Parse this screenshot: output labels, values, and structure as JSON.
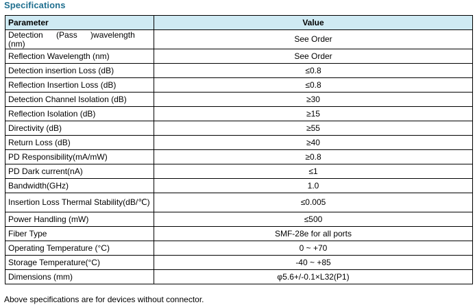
{
  "section_title": "Specifications",
  "table": {
    "headers": {
      "parameter": "Parameter",
      "value": "Value"
    },
    "rows": [
      {
        "parameter": "Detection (Pass )wavelength (nm)",
        "value": "See Order"
      },
      {
        "parameter": "Reflection Wavelength (nm)",
        "value": "See Order"
      },
      {
        "parameter": "Detection insertion Loss (dB)",
        "value": "≤0.8"
      },
      {
        "parameter": "Reflection Insertion Loss (dB)",
        "value": "≤0.8"
      },
      {
        "parameter": "Detection Channel Isolation (dB)",
        "value": "≥30"
      },
      {
        "parameter": "Reflection Isolation (dB)",
        "value": "≥15"
      },
      {
        "parameter": "Directivity (dB)",
        "value": "≥55"
      },
      {
        "parameter": "Return Loss (dB)",
        "value": "≥40"
      },
      {
        "parameter": "PD Responsibility(mA/mW)",
        "value": "≥0.8"
      },
      {
        "parameter": "PD Dark current(nA)",
        "value": "≤1"
      },
      {
        "parameter": "Bandwidth(GHz)",
        "value": "1.0"
      },
      {
        "parameter": "Insertion Loss Thermal Stability(dB/℃)",
        "value": "≤0.005"
      },
      {
        "parameter": "Power Handling (mW)",
        "value": "≤500"
      },
      {
        "parameter": "Fiber Type",
        "value": "SMF-28e for all ports"
      },
      {
        "parameter": "Operating Temperature (°C)",
        "value": "0 ~ +70"
      },
      {
        "parameter": "Storage Temperature(°C)",
        "value": "-40 ~ +85"
      },
      {
        "parameter": "Dimensions (mm)",
        "value": "φ5.6+/-0.1×L32(P1)"
      }
    ]
  },
  "footnote": "Above specifications are for devices without connector.",
  "colors": {
    "title": "#1f6f8f",
    "header_background": "#cfeaf3",
    "border": "#000000"
  }
}
